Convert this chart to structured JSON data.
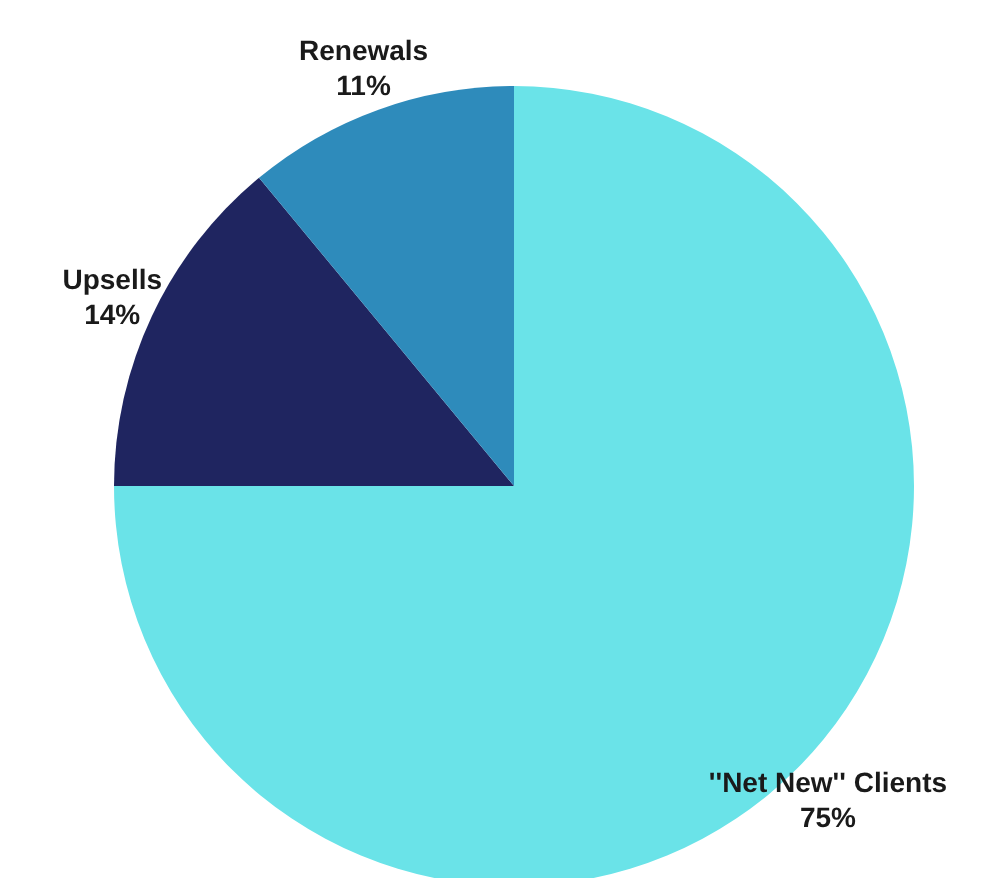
{
  "chart_data": {
    "type": "pie",
    "categories": [
      "''Net New'' Clients",
      "Upsells",
      "Renewals"
    ],
    "values": [
      75,
      14,
      11
    ],
    "colors": [
      "#6ae3e8",
      "#1f2560",
      "#2e8bbb"
    ],
    "value_labels": [
      "75%",
      "14%",
      "11%"
    ],
    "legend": false
  }
}
